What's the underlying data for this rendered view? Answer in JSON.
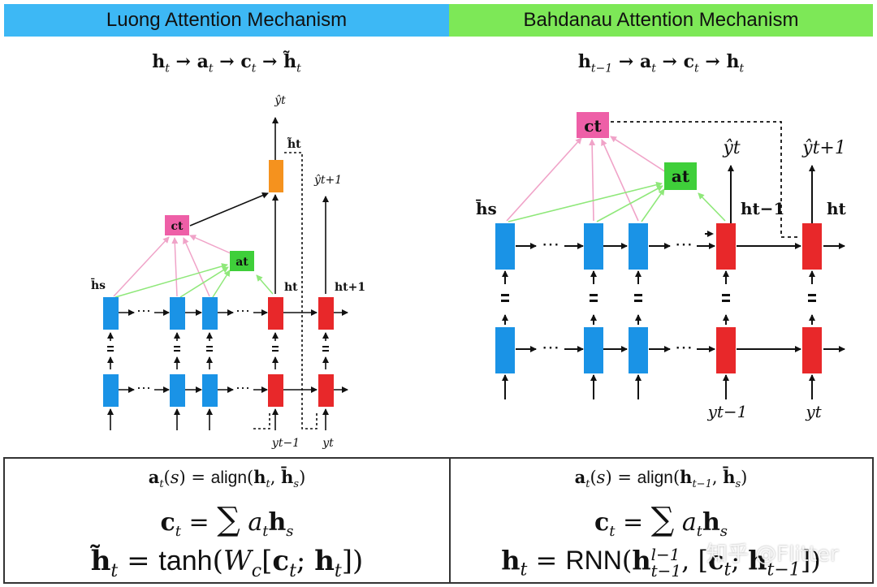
{
  "header": {
    "left_title": "Luong Attention Mechanism",
    "right_title": "Bahdanau Attention Mechanism",
    "left_color": "#3db8f5",
    "right_color": "#7de857"
  },
  "flows": {
    "left": "h_t → a_t → c_t → h̃_t",
    "right": "h_{t−1} → a_t → c_t → h_t"
  },
  "luong_diagram": {
    "labels": {
      "y_hat_t": "ŷt",
      "h_tilde_t": "h̃t",
      "y_hat_t1": "ŷt+1",
      "c_t": "ct",
      "a_t": "at",
      "h_bar_s": "h̄s",
      "h_t": "ht",
      "h_t1": "ht+1",
      "y_t_minus_1": "yt−1",
      "y_t": "yt",
      "ellipsis": "⋯"
    }
  },
  "bahdanau_diagram": {
    "labels": {
      "c_t": "ct",
      "a_t": "at",
      "y_hat_t": "ŷt",
      "y_hat_t1": "ŷt+1",
      "h_bar_s": "h̄s",
      "h_t_minus_1": "ht−1",
      "h_t": "ht",
      "y_t_minus_1": "yt−1",
      "y_t": "yt",
      "ellipsis": "⋯"
    }
  },
  "colors": {
    "encoder": "#1a93e6",
    "decoder": "#e8282a",
    "attention_output": "#f5921e",
    "context": "#ee5fa7",
    "align": "#3fcf3a",
    "pink_arrow": "#f0a3c8",
    "green_arrow": "#8fe87a"
  },
  "equations": {
    "luong": {
      "align": "a_t(s) = align(h_t, h̄_s)",
      "context": "c_t = Σ a_t h_s",
      "output": "h̃_t = tanh(W_c[c_t; h_t])"
    },
    "bahdanau": {
      "align": "a_t(s) = align(h_{t−1}, h̄_s)",
      "context": "c_t = Σ a_t h_s",
      "output": "h_t = RNN(h_{t−1}^{l−1}, [c_t; h_{t−1}])"
    }
  },
  "watermark": "知乎 @Flitter"
}
